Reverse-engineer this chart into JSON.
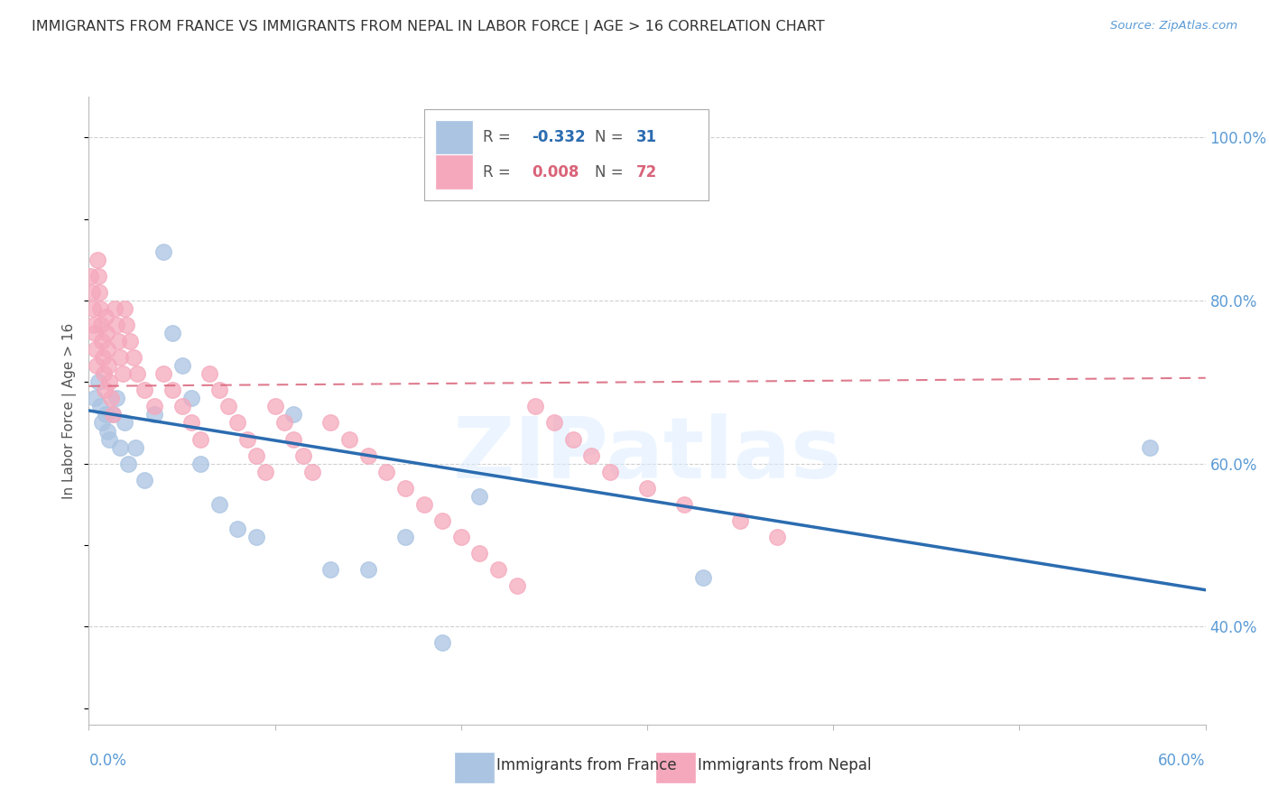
{
  "title": "IMMIGRANTS FROM FRANCE VS IMMIGRANTS FROM NEPAL IN LABOR FORCE | AGE > 16 CORRELATION CHART",
  "source": "Source: ZipAtlas.com",
  "legend_france": "Immigrants from France",
  "legend_nepal": "Immigrants from Nepal",
  "france_R": "-0.332",
  "france_N": "31",
  "nepal_R": "0.008",
  "nepal_N": "72",
  "france_color": "#aac4e2",
  "nepal_color": "#f5a8bc",
  "france_line_color": "#2b6cb0",
  "nepal_line_color": "#d9647a",
  "france_scatter_x": [
    0.3,
    0.5,
    0.6,
    0.7,
    0.9,
    1.0,
    1.1,
    1.3,
    1.5,
    1.7,
    1.9,
    2.1,
    2.5,
    3.0,
    3.5,
    4.0,
    4.5,
    5.0,
    5.5,
    6.0,
    7.0,
    8.0,
    9.0,
    11.0,
    13.0,
    15.0,
    17.0,
    19.0,
    21.0,
    33.0,
    57.0
  ],
  "france_scatter_y": [
    68,
    70,
    67,
    65,
    66,
    64,
    63,
    66,
    68,
    62,
    65,
    60,
    62,
    58,
    66,
    86,
    76,
    72,
    68,
    60,
    55,
    52,
    51,
    66,
    47,
    47,
    51,
    38,
    56,
    46,
    62
  ],
  "nepal_scatter_x": [
    0.1,
    0.15,
    0.2,
    0.25,
    0.3,
    0.35,
    0.4,
    0.45,
    0.5,
    0.55,
    0.6,
    0.65,
    0.7,
    0.75,
    0.8,
    0.85,
    0.9,
    0.95,
    1.0,
    1.05,
    1.1,
    1.2,
    1.3,
    1.4,
    1.5,
    1.6,
    1.7,
    1.8,
    1.9,
    2.0,
    2.2,
    2.4,
    2.6,
    3.0,
    3.5,
    4.0,
    4.5,
    5.0,
    5.5,
    6.0,
    6.5,
    7.0,
    7.5,
    8.0,
    8.5,
    9.0,
    9.5,
    10.0,
    10.5,
    11.0,
    11.5,
    12.0,
    13.0,
    14.0,
    15.0,
    16.0,
    17.0,
    18.0,
    19.0,
    20.0,
    21.0,
    22.0,
    23.0,
    24.0,
    25.0,
    26.0,
    27.0,
    28.0,
    30.0,
    32.0,
    35.0,
    37.0
  ],
  "nepal_scatter_y": [
    83,
    81,
    79,
    77,
    76,
    74,
    72,
    85,
    83,
    81,
    79,
    77,
    75,
    73,
    71,
    69,
    78,
    76,
    74,
    72,
    70,
    68,
    66,
    79,
    77,
    75,
    73,
    71,
    79,
    77,
    75,
    73,
    71,
    69,
    67,
    71,
    69,
    67,
    65,
    63,
    71,
    69,
    67,
    65,
    63,
    61,
    59,
    67,
    65,
    63,
    61,
    59,
    65,
    63,
    61,
    59,
    57,
    55,
    53,
    51,
    49,
    47,
    45,
    67,
    65,
    63,
    61,
    59,
    57,
    55,
    53,
    51
  ],
  "xlim": [
    0,
    60
  ],
  "ylim": [
    28,
    105
  ],
  "france_line_x0": 0,
  "france_line_x1": 60,
  "france_line_y0": 66.5,
  "france_line_y1": 44.5,
  "nepal_line_x0": 0,
  "nepal_line_x1": 60,
  "nepal_line_y0": 69.5,
  "nepal_line_y1": 70.5,
  "grid_levels": [
    40,
    60,
    80,
    100
  ],
  "right_ytick_labels": [
    "40.0%",
    "60.0%",
    "80.0%",
    "100.0%"
  ],
  "watermark_text": "ZIPatlas",
  "background_color": "#ffffff",
  "grid_color": "#d0d0d0",
  "title_color": "#333333",
  "source_color": "#5b9bd5",
  "axis_label_color": "#555555",
  "right_tick_color": "#5b9bd5"
}
